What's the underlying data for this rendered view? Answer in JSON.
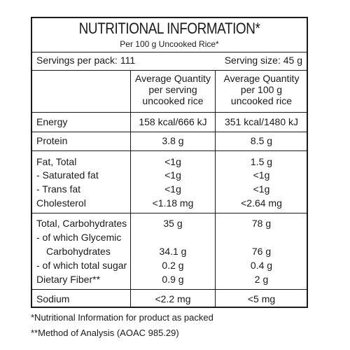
{
  "title": "NUTRITIONAL INFORMATION*",
  "subtitle": "Per 100 g Uncooked Rice*",
  "servings_per_pack": "Servings per pack: 111",
  "serving_size": "Serving size: 45 g",
  "headers": {
    "per_serving": [
      "Average Quantity",
      "per serving",
      "uncooked rice"
    ],
    "per_100g": [
      "Average Quantity",
      "per 100 g",
      "uncooked rice"
    ]
  },
  "rows": [
    {
      "label": "Energy",
      "per_serving": "158 kcal/666 kJ",
      "per_100g": "351 kcal/1480 kJ"
    },
    {
      "label": "Protein",
      "per_serving": "3.8 g",
      "per_100g": "8.5 g"
    },
    {
      "label": "Fat, Total",
      "per_serving": "<1g",
      "per_100g": "1.5 g"
    },
    {
      "label": "- Saturated fat",
      "per_serving": "<1g",
      "per_100g": "<1g"
    },
    {
      "label": "- Trans fat",
      "per_serving": "<1g",
      "per_100g": "<1g"
    },
    {
      "label": "Cholesterol",
      "per_serving": "<1.18 mg",
      "per_100g": "<2.64 mg"
    },
    {
      "label": "Total, Carbohydrates",
      "per_serving": "35 g",
      "per_100g": "78 g"
    },
    {
      "label": "- of which Glycemic",
      "per_serving": "",
      "per_100g": ""
    },
    {
      "label": "Carbohydrates",
      "per_serving": "34.1 g",
      "per_100g": "76 g"
    },
    {
      "label": "- of which total sugar",
      "per_serving": "0.2 g",
      "per_100g": "0.4 g"
    },
    {
      "label": "Dietary Fiber**",
      "per_serving": "0.9 g",
      "per_100g": "2 g"
    },
    {
      "label": "Sodium",
      "per_serving": "<2.2 mg",
      "per_100g": "<5 mg"
    }
  ],
  "footnotes": [
    "*Nutritional Information for product as packed",
    "**Method of Analysis (AOAC 985.29)"
  ]
}
